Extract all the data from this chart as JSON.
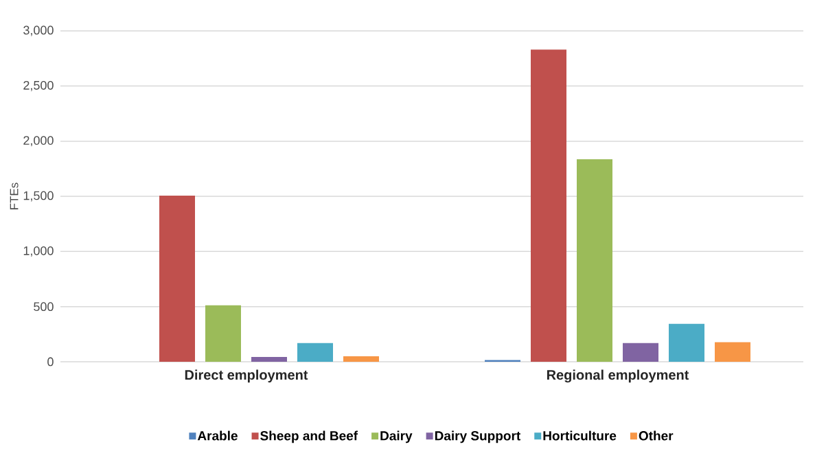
{
  "chart_data": {
    "type": "bar",
    "ylabel": "FTEs",
    "categories": [
      "Direct employment",
      "Regional employment"
    ],
    "series": [
      {
        "name": "Arable",
        "color": "#4f81bd",
        "values": [
          0,
          16
        ]
      },
      {
        "name": "Sheep and Beef",
        "color": "#c0504d",
        "values": [
          1506,
          2831
        ]
      },
      {
        "name": "Dairy",
        "color": "#9bbb59",
        "values": [
          512,
          1836
        ]
      },
      {
        "name": "Dairy Support",
        "color": "#8064a2",
        "values": [
          44,
          169
        ]
      },
      {
        "name": "Horticulture",
        "color": "#4bacc6",
        "values": [
          169,
          344
        ]
      },
      {
        "name": "Other",
        "color": "#f79646",
        "values": [
          50,
          178
        ]
      }
    ],
    "ylim": [
      0,
      3000
    ],
    "yticks": [
      {
        "value": 0,
        "label": "0"
      },
      {
        "value": 500,
        "label": "500"
      },
      {
        "value": 1000,
        "label": "1,000"
      },
      {
        "value": 1500,
        "label": "1,500"
      },
      {
        "value": 2000,
        "label": "2,000"
      },
      {
        "value": 2500,
        "label": "2,500"
      },
      {
        "value": 3000,
        "label": "3,000"
      }
    ],
    "grid": "y",
    "legend": "bottom"
  }
}
